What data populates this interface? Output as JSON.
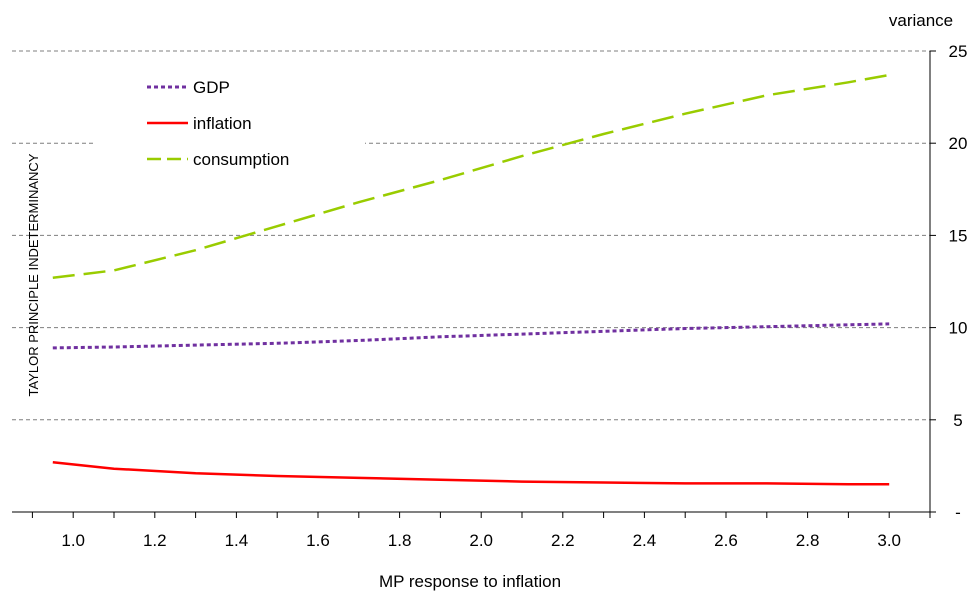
{
  "chart_data": {
    "type": "line",
    "xlabel": "MP response to inflation",
    "ylabel": "variance",
    "note": "TAYLOR  PRINCIPLE  INDETERMINANCY",
    "xlim": [
      0.85,
      3.1
    ],
    "ylim": [
      0,
      25
    ],
    "x_ticks": [
      "1.0",
      "1.2",
      "1.4",
      "1.6",
      "1.8",
      "2.0",
      "2.2",
      "2.4",
      "2.6",
      "2.8",
      "3.0"
    ],
    "y_ticks": [
      "-",
      "5",
      "10",
      "15",
      "20",
      "25"
    ],
    "grid": true,
    "legend_position": "top-left",
    "series": [
      {
        "name": "GDP",
        "color": "#7030a0",
        "style": "dotted",
        "x": [
          0.95,
          1.1,
          1.3,
          1.5,
          1.7,
          1.9,
          2.1,
          2.3,
          2.5,
          2.7,
          2.9,
          3.0
        ],
        "y": [
          8.9,
          8.95,
          9.05,
          9.15,
          9.3,
          9.5,
          9.65,
          9.8,
          9.95,
          10.05,
          10.15,
          10.2
        ]
      },
      {
        "name": "inflation",
        "color": "#ff0000",
        "style": "solid",
        "x": [
          0.95,
          1.1,
          1.3,
          1.5,
          1.7,
          1.9,
          2.1,
          2.3,
          2.5,
          2.7,
          2.9,
          3.0
        ],
        "y": [
          2.7,
          2.35,
          2.1,
          1.95,
          1.85,
          1.75,
          1.65,
          1.6,
          1.55,
          1.55,
          1.5,
          1.5
        ]
      },
      {
        "name": "consumption",
        "color": "#99cc00",
        "style": "dashed",
        "x": [
          0.95,
          1.1,
          1.3,
          1.5,
          1.7,
          1.9,
          2.1,
          2.3,
          2.5,
          2.7,
          2.9,
          3.0
        ],
        "y": [
          12.7,
          13.1,
          14.2,
          15.5,
          16.8,
          18.0,
          19.3,
          20.5,
          21.6,
          22.6,
          23.3,
          23.7
        ]
      }
    ]
  }
}
